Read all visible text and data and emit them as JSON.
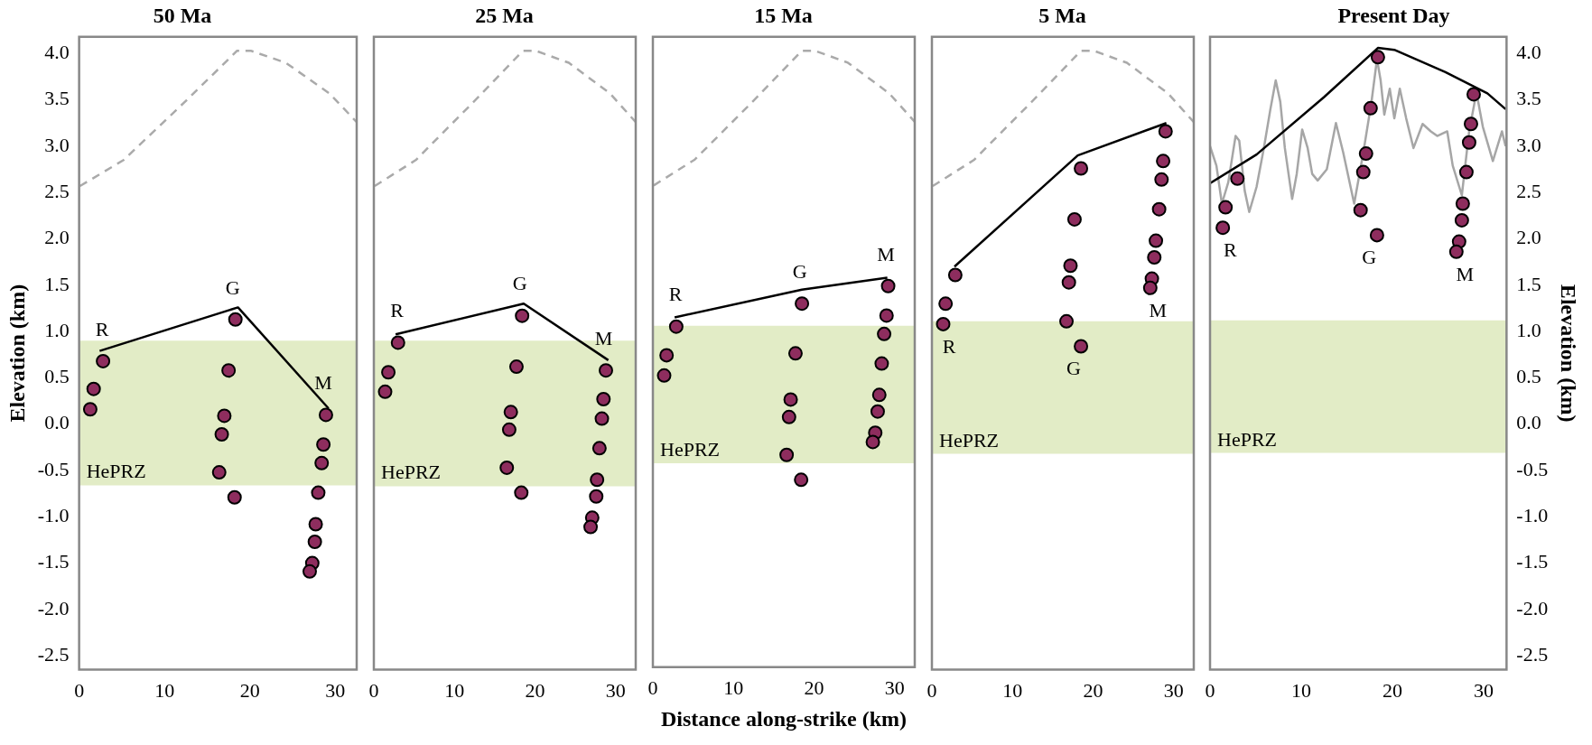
{
  "chart_data": [
    {
      "type": "scatter",
      "title": "50 Ma",
      "ylabel": "Elevation (km)",
      "xlim": [
        0,
        32.5
      ],
      "xticks": [
        0,
        10,
        20,
        30
      ],
      "ylim": [
        -2.65,
        4.18
      ],
      "yticks": [
        {
          "value": -2.5,
          "label": "-2.5"
        },
        {
          "value": -2,
          "label": "-2.0"
        },
        {
          "value": -1.5,
          "label": "-1.5"
        },
        {
          "value": -1,
          "label": "-1.0"
        },
        {
          "value": -0.5,
          "label": "-0.5"
        },
        {
          "value": 0,
          "label": "0.0"
        },
        {
          "value": 0.5,
          "label": "0.5"
        },
        {
          "value": 1,
          "label": "1.0"
        },
        {
          "value": 1.5,
          "label": "1.5"
        },
        {
          "value": 2,
          "label": "2.0"
        },
        {
          "value": 2.5,
          "label": "2.5"
        },
        {
          "value": 3,
          "label": "3.0"
        },
        {
          "value": 3.5,
          "label": "3.5"
        },
        {
          "value": 4,
          "label": "4.0"
        }
      ],
      "series": [
        {
          "type": "scatter",
          "name": "R",
          "marker": "circle",
          "color": "#8e2d5e",
          "x": [
            2.8,
            1.7,
            1.3
          ],
          "values": [
            0.68,
            0.38,
            0.16
          ]
        },
        {
          "type": "scatter",
          "name": "G",
          "marker": "circle",
          "color": "#8e2d5e",
          "x": [
            18.3,
            17.5,
            17.0,
            16.7,
            16.4,
            18.2
          ],
          "values": [
            1.13,
            0.58,
            0.09,
            -0.11,
            -0.52,
            -0.79
          ]
        },
        {
          "type": "scatter",
          "name": "M",
          "marker": "circle",
          "color": "#8e2d5e",
          "x": [
            28.9,
            28.6,
            28.4,
            28.0,
            27.7,
            27.6,
            27.3,
            27.0
          ],
          "values": [
            0.1,
            -0.22,
            -0.42,
            -0.74,
            -1.08,
            -1.27,
            -1.5,
            -1.59
          ]
        },
        {
          "type": "line",
          "marker": "none",
          "line_style": "solid",
          "color": "#000000",
          "x": [
            2.4,
            18.6,
            29.2
          ],
          "values": [
            0.79,
            1.26,
            0.17
          ]
        },
        {
          "type": "line",
          "marker": "none",
          "line_style": "dashed",
          "color": "#aaaaaa",
          "x": [
            0.1,
            5.2,
            12.4,
            18.5,
            20.1,
            24.2,
            29.3,
            32.5
          ],
          "values": [
            2.57,
            2.85,
            3.48,
            4.03,
            4.03,
            3.9,
            3.57,
            3.26
          ]
        }
      ],
      "bands": [
        {
          "axis": "y",
          "from": -0.66,
          "to": 0.9,
          "label": "HePRZ",
          "color": "#e2ecc6"
        }
      ]
    },
    {
      "type": "scatter",
      "title": "25 Ma",
      "tick_labels": "x",
      "xlim": [
        0,
        32.5
      ],
      "xticks": [
        0,
        10,
        20,
        30
      ],
      "ylim": [
        -2.65,
        4.18
      ],
      "series": [
        {
          "type": "scatter",
          "name": "R",
          "marker": "circle",
          "color": "#8e2d5e",
          "x": [
            3.0,
            1.8,
            1.4
          ],
          "values": [
            0.88,
            0.56,
            0.35
          ]
        },
        {
          "type": "scatter",
          "name": "G",
          "marker": "circle",
          "color": "#8e2d5e",
          "x": [
            18.4,
            17.7,
            17.0,
            16.8,
            16.5,
            18.3
          ],
          "values": [
            1.17,
            0.62,
            0.13,
            -0.06,
            -0.47,
            -0.74
          ]
        },
        {
          "type": "scatter",
          "name": "M",
          "marker": "circle",
          "color": "#8e2d5e",
          "x": [
            28.8,
            28.5,
            28.3,
            28.0,
            27.7,
            27.6,
            27.1,
            26.9
          ],
          "values": [
            0.58,
            0.27,
            0.06,
            -0.26,
            -0.6,
            -0.78,
            -1.01,
            -1.11
          ]
        },
        {
          "type": "line",
          "marker": "none",
          "line_style": "solid",
          "color": "#000000",
          "x": [
            2.7,
            18.6,
            29.1
          ],
          "values": [
            0.97,
            1.3,
            0.69
          ]
        },
        {
          "type": "line",
          "marker": "none",
          "line_style": "dashed",
          "color": "#aaaaaa",
          "x": [
            0.1,
            5.2,
            12.4,
            18.5,
            20.1,
            24.2,
            29.3,
            32.5
          ],
          "values": [
            2.57,
            2.85,
            3.48,
            4.03,
            4.03,
            3.9,
            3.57,
            3.26
          ]
        }
      ],
      "bands": [
        {
          "axis": "y",
          "from": -0.67,
          "to": 0.9,
          "label": "HePRZ",
          "color": "#e2ecc6"
        }
      ]
    },
    {
      "type": "scatter",
      "title": "15 Ma",
      "xlabel": "Distance along-strike (km)",
      "tick_labels": "x",
      "xlim": [
        0,
        32.5
      ],
      "xticks": [
        0,
        10,
        20,
        30
      ],
      "ylim": [
        -2.65,
        4.18
      ],
      "series": [
        {
          "type": "scatter",
          "name": "R",
          "marker": "circle",
          "color": "#8e2d5e",
          "x": [
            2.9,
            1.7,
            1.4
          ],
          "values": [
            1.04,
            0.73,
            0.51
          ]
        },
        {
          "type": "scatter",
          "name": "G",
          "marker": "circle",
          "color": "#8e2d5e",
          "x": [
            18.5,
            17.7,
            17.1,
            16.9,
            16.6,
            18.4
          ],
          "values": [
            1.29,
            0.75,
            0.25,
            0.06,
            -0.35,
            -0.62
          ]
        },
        {
          "type": "scatter",
          "name": "M",
          "marker": "circle",
          "color": "#8e2d5e",
          "x": [
            29.2,
            29.0,
            28.7,
            28.4,
            28.1,
            27.9,
            27.6,
            27.3
          ],
          "values": [
            1.48,
            1.16,
            0.96,
            0.64,
            0.3,
            0.12,
            -0.11,
            -0.21
          ]
        },
        {
          "type": "line",
          "marker": "none",
          "line_style": "solid",
          "color": "#000000",
          "x": [
            2.7,
            18.5,
            29.1
          ],
          "values": [
            1.14,
            1.44,
            1.57
          ]
        },
        {
          "type": "line",
          "marker": "none",
          "line_style": "dashed",
          "color": "#aaaaaa",
          "x": [
            0.1,
            5.2,
            12.4,
            18.5,
            20.1,
            24.2,
            29.3,
            32.5
          ],
          "values": [
            2.57,
            2.85,
            3.48,
            4.03,
            4.03,
            3.9,
            3.57,
            3.26
          ]
        }
      ],
      "bands": [
        {
          "axis": "y",
          "from": -0.44,
          "to": 1.05,
          "label": "HePRZ",
          "color": "#e2ecc6"
        }
      ]
    },
    {
      "type": "scatter",
      "title": "5 Ma",
      "tick_labels": "x",
      "xlim": [
        0,
        32.5
      ],
      "xticks": [
        0,
        10,
        20,
        30
      ],
      "ylim": [
        -2.65,
        4.18
      ],
      "series": [
        {
          "type": "scatter",
          "name": "R",
          "marker": "circle",
          "color": "#8e2d5e",
          "x": [
            2.9,
            1.7,
            1.4
          ],
          "values": [
            1.61,
            1.3,
            1.08
          ]
        },
        {
          "type": "scatter",
          "name": "G",
          "marker": "circle",
          "color": "#8e2d5e",
          "x": [
            18.5,
            17.7,
            17.2,
            17.0,
            16.7,
            18.5
          ],
          "values": [
            2.76,
            2.21,
            1.71,
            1.53,
            1.11,
            0.84
          ]
        },
        {
          "type": "scatter",
          "name": "M",
          "marker": "circle",
          "color": "#8e2d5e",
          "x": [
            29.0,
            28.7,
            28.5,
            28.2,
            27.8,
            27.6,
            27.3,
            27.1
          ],
          "values": [
            3.16,
            2.84,
            2.64,
            2.32,
            1.98,
            1.8,
            1.57,
            1.47
          ]
        },
        {
          "type": "line",
          "marker": "none",
          "line_style": "solid",
          "color": "#000000",
          "x": [
            2.8,
            18.1,
            29.1
          ],
          "values": [
            1.7,
            2.9,
            3.25
          ]
        },
        {
          "type": "line",
          "marker": "none",
          "line_style": "dashed",
          "color": "#aaaaaa",
          "x": [
            0.1,
            5.2,
            12.4,
            18.5,
            20.1,
            24.2,
            29.3,
            32.5
          ],
          "values": [
            2.57,
            2.85,
            3.48,
            4.03,
            4.03,
            3.9,
            3.57,
            3.26
          ]
        }
      ],
      "bands": [
        {
          "axis": "y",
          "from": -0.32,
          "to": 1.11,
          "label": "HePRZ",
          "color": "#e2ecc6"
        }
      ]
    },
    {
      "type": "scatter",
      "title": "Present Day",
      "y2label": "Elevation (km)",
      "xlim": [
        0,
        32.5
      ],
      "xticks": [
        0,
        10,
        20,
        30
      ],
      "y2lim": [
        -2.65,
        4.18
      ],
      "y2ticks": [
        {
          "value": -2.5,
          "label": "-2.5"
        },
        {
          "value": -2,
          "label": "-2.0"
        },
        {
          "value": -1.5,
          "label": "-1.5"
        },
        {
          "value": -1,
          "label": "-1.0"
        },
        {
          "value": -0.5,
          "label": "-0.5"
        },
        {
          "value": 0,
          "label": "0.0"
        },
        {
          "value": 0.5,
          "label": "0.5"
        },
        {
          "value": 1,
          "label": "1.0"
        },
        {
          "value": 1.5,
          "label": "1.5"
        },
        {
          "value": 2,
          "label": "2.0"
        },
        {
          "value": 2.5,
          "label": "2.5"
        },
        {
          "value": 3,
          "label": "3.0"
        },
        {
          "value": 3.5,
          "label": "3.5"
        },
        {
          "value": 4,
          "label": "4.0"
        }
      ],
      "series": [
        {
          "type": "scatter",
          "name": "R",
          "axis": "y2",
          "marker": "circle",
          "color": "#8e2d5e",
          "x": [
            3.0,
            1.7,
            1.4
          ],
          "values": [
            2.65,
            2.34,
            2.12
          ]
        },
        {
          "type": "scatter",
          "name": "G",
          "axis": "y2",
          "marker": "circle",
          "color": "#8e2d5e",
          "x": [
            18.4,
            17.6,
            17.1,
            16.8,
            16.5,
            18.3
          ],
          "values": [
            3.96,
            3.41,
            2.92,
            2.72,
            2.31,
            2.04
          ]
        },
        {
          "type": "scatter",
          "name": "M",
          "axis": "y2",
          "marker": "circle",
          "color": "#8e2d5e",
          "x": [
            28.9,
            28.6,
            28.4,
            28.1,
            27.7,
            27.6,
            27.3,
            27.0
          ],
          "values": [
            3.56,
            3.24,
            3.04,
            2.72,
            2.38,
            2.2,
            1.97,
            1.86
          ]
        },
        {
          "type": "line",
          "axis": "y2",
          "marker": "none",
          "line_style": "solid",
          "color": "#000000",
          "x": [
            0,
            5.1,
            12.5,
            18.4,
            20.2,
            25.8,
            30.4,
            32.4
          ],
          "values": [
            2.6,
            2.91,
            3.53,
            4.06,
            4.04,
            3.8,
            3.57,
            3.4
          ]
        },
        {
          "type": "line",
          "axis": "y2",
          "marker": "none",
          "line_style": "solid",
          "color": "#a6a6a6",
          "x": [
            0,
            0.7,
            1.3,
            2.0,
            2.8,
            3.2,
            3.8,
            4.3,
            5.1,
            5.9,
            6.6,
            7.2,
            7.7,
            8.2,
            9.0,
            9.5,
            10.1,
            10.7,
            11.2,
            11.8,
            12.8,
            13.8,
            14.6,
            15.8,
            16.8,
            17.7,
            18.3,
            18.7,
            19.1,
            19.7,
            20.2,
            20.8,
            21.5,
            22.3,
            23.3,
            24.2,
            24.9,
            26.0,
            26.6,
            27.6,
            28.4,
            29.2,
            29.9,
            31.0,
            32.0,
            32.4
          ],
          "values": [
            3.0,
            2.79,
            2.38,
            2.61,
            3.11,
            3.06,
            2.52,
            2.29,
            2.56,
            2.98,
            3.39,
            3.71,
            3.48,
            2.98,
            2.43,
            2.7,
            3.18,
            2.98,
            2.7,
            2.63,
            2.75,
            3.25,
            2.93,
            2.38,
            2.93,
            3.48,
            3.94,
            3.71,
            3.34,
            3.62,
            3.3,
            3.62,
            3.3,
            2.98,
            3.24,
            3.16,
            3.11,
            3.16,
            2.79,
            2.47,
            3.16,
            3.58,
            3.21,
            2.84,
            3.16,
            3.0
          ]
        }
      ],
      "bands": [
        {
          "axis": "y2",
          "from": -0.31,
          "to": 1.12,
          "label": "HePRZ",
          "color": "#e2ecc6"
        }
      ]
    }
  ]
}
